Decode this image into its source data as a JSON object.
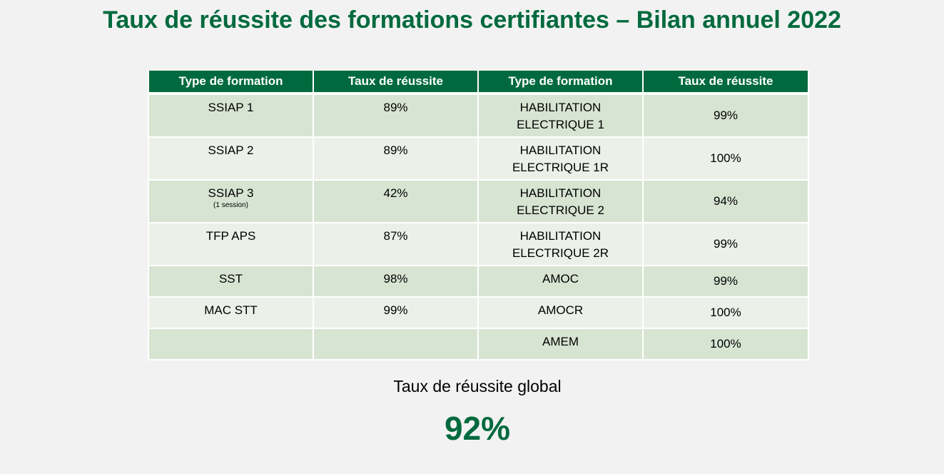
{
  "title": "Taux de réussite des formations certifiantes – Bilan annuel 2022",
  "table": {
    "headers": [
      "Type de formation",
      "Taux de réussite",
      "Type de formation",
      "Taux de réussite"
    ],
    "rows": [
      {
        "left_type": "SSIAP 1",
        "left_note": "",
        "left_rate": "89%",
        "right_type_line1": "HABILITATION",
        "right_type_line2": "ELECTRIQUE 1",
        "right_rate": "99%"
      },
      {
        "left_type": "SSIAP 2",
        "left_note": "",
        "left_rate": "89%",
        "right_type_line1": "HABILITATION",
        "right_type_line2": "ELECTRIQUE 1R",
        "right_rate": "100%"
      },
      {
        "left_type": "SSIAP 3",
        "left_note": "(1 session)",
        "left_rate": "42%",
        "right_type_line1": "HABILITATION",
        "right_type_line2": "ELECTRIQUE 2",
        "right_rate": "94%"
      },
      {
        "left_type": "TFP APS",
        "left_note": "",
        "left_rate": "87%",
        "right_type_line1": "HABILITATION",
        "right_type_line2": "ELECTRIQUE 2R",
        "right_rate": "99%"
      },
      {
        "left_type": "SST",
        "left_note": "",
        "left_rate": "98%",
        "right_type_line1": "AMOC",
        "right_type_line2": "",
        "right_rate": "99%"
      },
      {
        "left_type": "MAC STT",
        "left_note": "",
        "left_rate": "99%",
        "right_type_line1": "AMOCR",
        "right_type_line2": "",
        "right_rate": "100%"
      },
      {
        "left_type": "",
        "left_note": "",
        "left_rate": "",
        "right_type_line1": "AMEM",
        "right_type_line2": "",
        "right_rate": "100%"
      }
    ]
  },
  "global": {
    "label": "Taux de réussite global",
    "value": "92%"
  },
  "colors": {
    "brand_green": "#006a3e",
    "row_dark": "#d7e4d2",
    "row_light": "#ebf0e9",
    "background": "#f2f2f2"
  }
}
